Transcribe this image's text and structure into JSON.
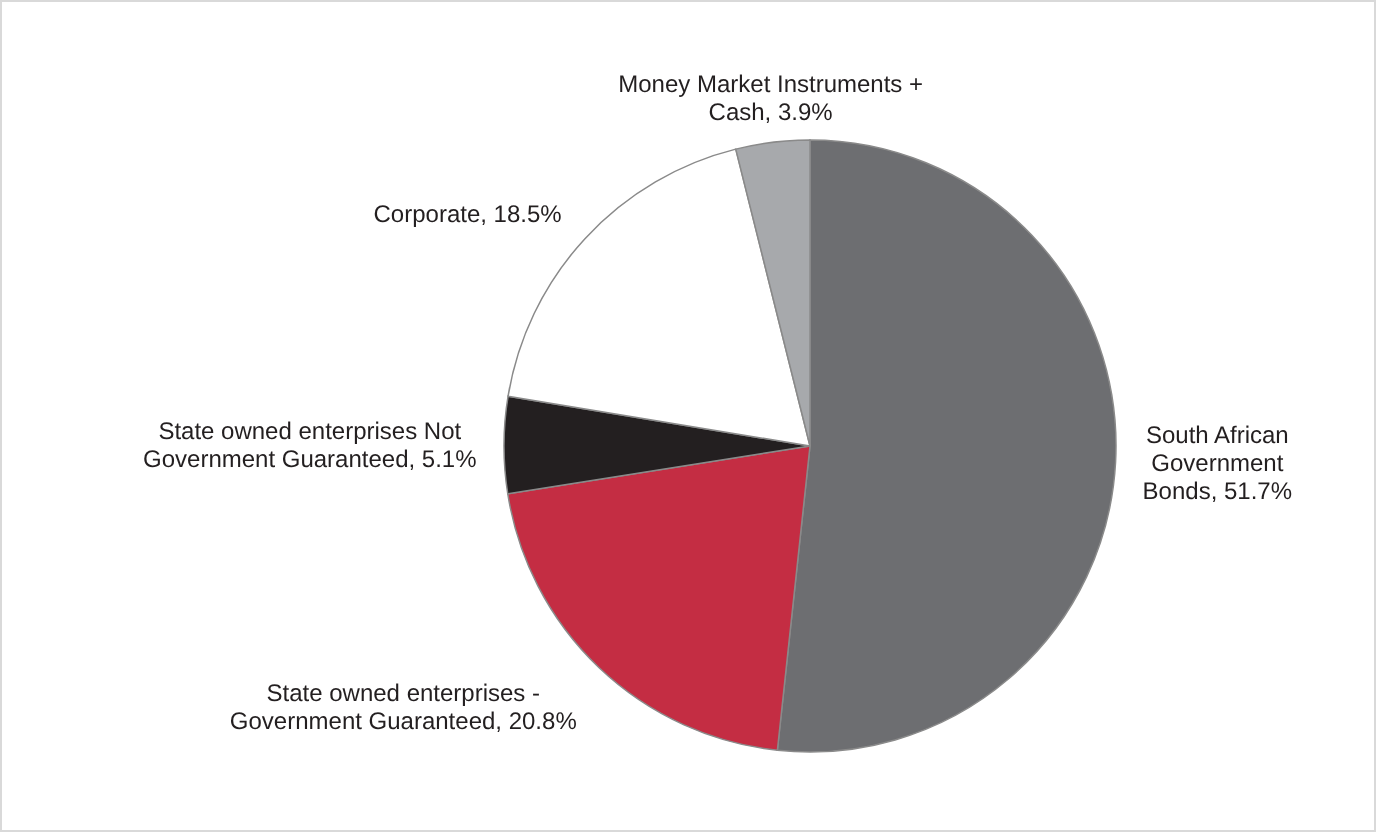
{
  "chart_data": {
    "type": "pie",
    "categories": [
      "South African Government Bonds",
      "State owned enterprises - Government Guaranteed",
      "State owned enterprises Not Government Guaranteed",
      "Corporate",
      "Money Market Instruments + Cash"
    ],
    "values": [
      51.7,
      20.8,
      5.1,
      18.5,
      3.9
    ],
    "value_labels": [
      "51.7%",
      "20.8%",
      "5.1%",
      "18.5%",
      "3.9%"
    ],
    "colors": [
      "#6d6e71",
      "#c42d43",
      "#231f20",
      "#ffffff",
      "#a7a9ac"
    ]
  }
}
